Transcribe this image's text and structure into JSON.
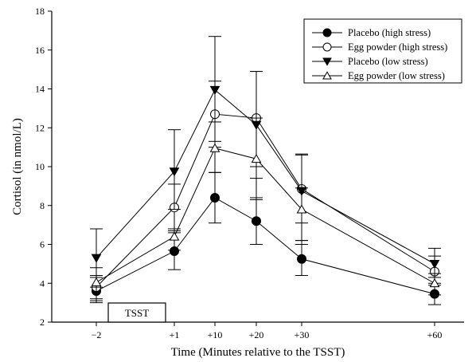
{
  "chart_data": {
    "type": "line",
    "xlabel": "Time (Minutes relative to the TSST)",
    "ylabel": "Cortisol (in nmol/L)",
    "ylim": [
      2,
      18
    ],
    "yticks": [
      2,
      4,
      6,
      8,
      10,
      12,
      14,
      16,
      18
    ],
    "categories": [
      "−2",
      "+1",
      "+10",
      "+20",
      "+30",
      "+60"
    ],
    "x": [
      -2,
      1,
      10,
      20,
      30,
      60
    ],
    "legend_position": "top-right",
    "annotation": "TSST",
    "series": [
      {
        "name": "Placebo (high stress)",
        "marker": "filled-circle",
        "values": [
          3.6,
          5.65,
          8.4,
          7.2,
          5.25,
          3.45
        ],
        "error_low": [
          3.0,
          4.7,
          7.1,
          6.0,
          4.4,
          2.9
        ],
        "error_high": [
          4.3,
          6.7,
          9.7,
          8.4,
          6.2,
          4.0
        ]
      },
      {
        "name": "Egg powder (high stress)",
        "marker": "open-circle",
        "values": [
          3.8,
          7.9,
          12.7,
          12.5,
          8.85,
          4.6
        ],
        "error_low": [
          3.1,
          6.6,
          11.0,
          10.0,
          7.1,
          3.9
        ],
        "error_high": [
          4.4,
          9.1,
          14.4,
          14.9,
          10.65,
          5.4
        ]
      },
      {
        "name": "Placebo (low stress)",
        "marker": "filled-triangle-down",
        "values": [
          5.3,
          9.75,
          13.95,
          12.15,
          8.75,
          5.0
        ],
        "error_low": [
          3.8,
          7.8,
          11.3,
          9.4,
          6.2,
          4.3
        ],
        "error_high": [
          6.8,
          11.9,
          16.7,
          14.9,
          10.6,
          5.8
        ]
      },
      {
        "name": "Egg powder (low stress)",
        "marker": "open-triangle-up",
        "values": [
          4.05,
          6.4,
          10.95,
          10.4,
          7.8,
          4.0
        ],
        "error_low": [
          3.2,
          5.7,
          9.7,
          8.3,
          6.0,
          3.4
        ],
        "error_high": [
          4.8,
          6.8,
          12.3,
          12.5,
          8.9,
          4.5
        ]
      }
    ]
  }
}
